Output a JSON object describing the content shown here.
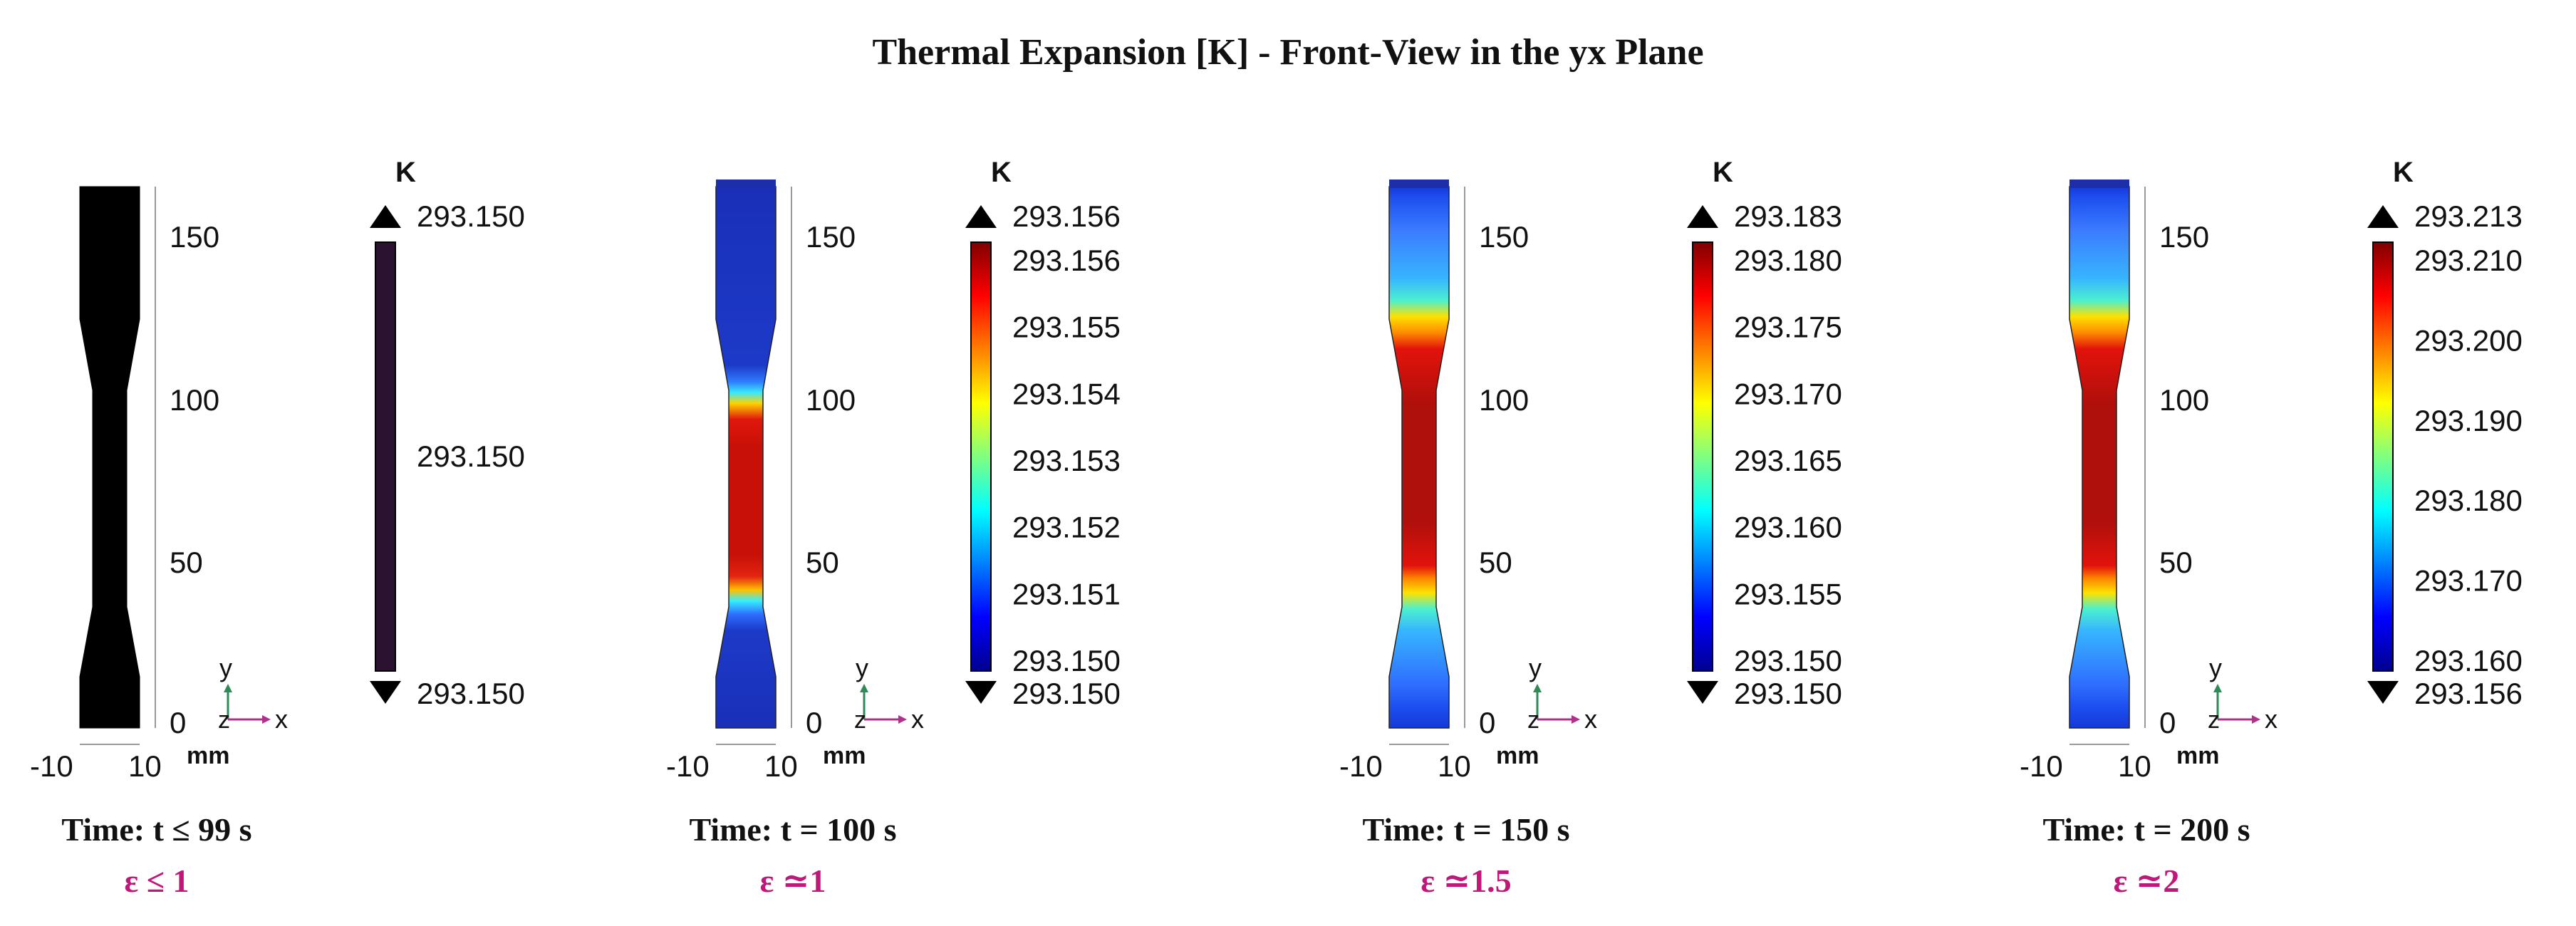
{
  "title": "Thermal Expansion [K] - Front-View in the yx Plane",
  "colors": {
    "text": "#111111",
    "strain": "#c0187a",
    "axis_y": "#2e8b57",
    "axis_x": "#b0308a",
    "solid_black": "#000000",
    "solid_purple": "#2a1230",
    "jet": [
      "#00008f",
      "#0000ff",
      "#0080ff",
      "#00ffff",
      "#80ff80",
      "#ffff00",
      "#ff8000",
      "#ff0000",
      "#800000"
    ]
  },
  "panels": [
    {
      "id": "p1",
      "ruler_ticks": [
        "150",
        "100",
        "50",
        "0"
      ],
      "x_ticks": [
        "-10",
        "10"
      ],
      "unit": "mm",
      "axis_letters": {
        "y": "y",
        "z": "z",
        "x": "x"
      },
      "colorbar_unit": "K",
      "colorbar_max": "293.150",
      "colorbar_min": "293.150",
      "colorbar_labels": [
        "293.150"
      ],
      "colorbar_mode": "solid",
      "specimen_mode": "solid",
      "time": "Time: t ≤ 99 s",
      "strain": "ε ≤ 1"
    },
    {
      "id": "p2",
      "ruler_ticks": [
        "150",
        "100",
        "50",
        "0"
      ],
      "x_ticks": [
        "-10",
        "10"
      ],
      "unit": "mm",
      "axis_letters": {
        "y": "y",
        "z": "z",
        "x": "x"
      },
      "colorbar_unit": "K",
      "colorbar_max": "293.156",
      "colorbar_min": "293.150",
      "colorbar_labels": [
        "293.156",
        "293.155",
        "293.154",
        "293.153",
        "293.152",
        "293.151",
        "293.150"
      ],
      "colorbar_mode": "jet",
      "specimen_mode": "hot-narrow",
      "time": "Time: t = 100 s",
      "strain": "ε ≃1"
    },
    {
      "id": "p3",
      "ruler_ticks": [
        "150",
        "100",
        "50",
        "0"
      ],
      "x_ticks": [
        "-10",
        "10"
      ],
      "unit": "mm",
      "axis_letters": {
        "y": "y",
        "z": "z",
        "x": "x"
      },
      "colorbar_unit": "K",
      "colorbar_max": "293.183",
      "colorbar_min": "293.150",
      "colorbar_labels": [
        "293.180",
        "293.175",
        "293.170",
        "293.165",
        "293.160",
        "293.155",
        "293.150"
      ],
      "colorbar_mode": "jet",
      "specimen_mode": "hot-wide",
      "time": "Time: t = 150 s",
      "strain": "ε ≃1.5"
    },
    {
      "id": "p4",
      "ruler_ticks": [
        "150",
        "100",
        "50",
        "0"
      ],
      "x_ticks": [
        "-10",
        "10"
      ],
      "unit": "mm",
      "axis_letters": {
        "y": "y",
        "z": "z",
        "x": "x"
      },
      "colorbar_unit": "K",
      "colorbar_max": "293.213",
      "colorbar_min": "293.156",
      "colorbar_labels": [
        "293.210",
        "293.200",
        "293.190",
        "293.180",
        "293.170",
        "293.160"
      ],
      "colorbar_mode": "jet",
      "specimen_mode": "hot-wide",
      "time": "Time: t = 200 s",
      "strain": "ε ≃2"
    }
  ]
}
